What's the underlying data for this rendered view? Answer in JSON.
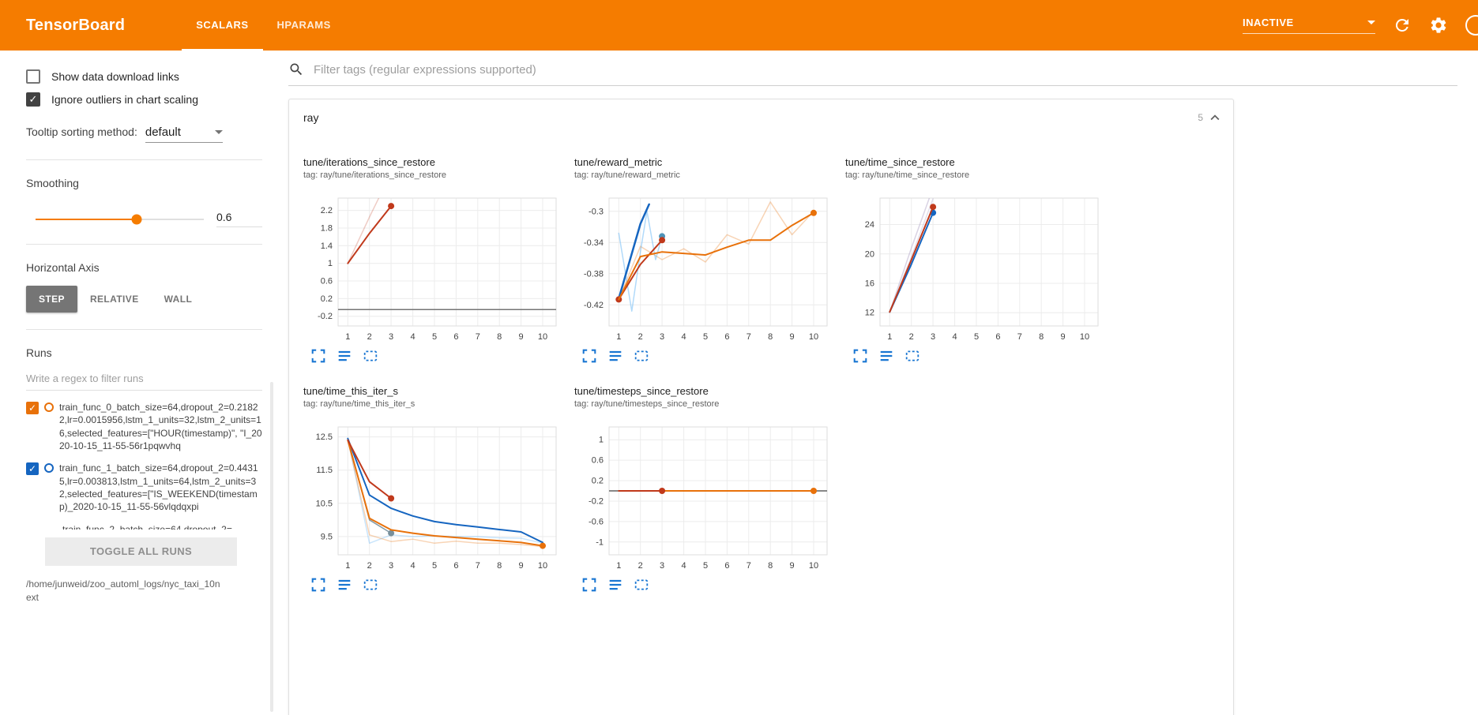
{
  "header": {
    "logo": "TensorBoard",
    "tabs": [
      {
        "label": "SCALARS",
        "active": true
      },
      {
        "label": "HPARAMS",
        "active": false
      }
    ],
    "status": "INACTIVE"
  },
  "sidebar": {
    "show_download": {
      "label": "Show data download links",
      "checked": false
    },
    "ignore_outliers": {
      "label": "Ignore outliers in chart scaling",
      "checked": true
    },
    "tooltip_sorting": {
      "label": "Tooltip sorting method:",
      "value": "default"
    },
    "smoothing": {
      "label": "Smoothing",
      "value": "0.6",
      "percent": 60
    },
    "horizontal_axis": {
      "label": "Horizontal Axis",
      "options": [
        {
          "label": "STEP",
          "selected": true
        },
        {
          "label": "RELATIVE",
          "selected": false
        },
        {
          "label": "WALL",
          "selected": false
        }
      ]
    },
    "runs": {
      "label": "Runs",
      "filter_placeholder": "Write a regex to filter runs",
      "items": [
        {
          "label": "train_func_0_batch_size=64,dropout_2=0.21822,lr=0.0015956,lstm_1_units=32,lstm_2_units=16,selected_features=[\"HOUR(timestamp)\", \"I_2020-10-15_11-55-56r1pqwvhq",
          "checked": true,
          "color": "#e8710a",
          "partial": false
        },
        {
          "label": "train_func_1_batch_size=64,dropout_2=0.44315,lr=0.003813,lstm_1_units=64,lstm_2_units=32,selected_features=[\"IS_WEEKEND(timestamp)_2020-10-15_11-55-56vlqdqxpi",
          "checked": true,
          "color": "#1565c0",
          "partial": false
        },
        {
          "label": "train_func_2_batch_size=64,dropout_2=",
          "checked": true,
          "color": "#9e9e9e",
          "partial": true
        }
      ],
      "toggle_all": "TOGGLE ALL RUNS",
      "log_dir": "/home/junweid/zoo_automl_logs/nyc_taxi_10next"
    }
  },
  "main": {
    "filter_placeholder": "Filter tags (regular expressions supported)",
    "section": {
      "title": "ray",
      "count": "5"
    }
  },
  "chart_data": [
    {
      "type": "line",
      "title": "tune/iterations_since_restore",
      "tag": "tag: ray/tune/iterations_since_restore",
      "x_ticks": [
        1,
        2,
        3,
        4,
        5,
        6,
        7,
        8,
        9,
        10
      ],
      "y_ticks": [
        -0.2,
        0.2,
        0.6,
        1,
        1.4,
        1.8,
        2.2
      ],
      "x_range": [
        0.55,
        10.62
      ],
      "y_range": [
        -0.42,
        2.48
      ],
      "series": [
        {
          "name": "train_func_0 (raw)",
          "color": "#c0391b",
          "opacity": 0.25,
          "width": 1.5,
          "points": [
            [
              1,
              1
            ],
            [
              2,
              2.05
            ],
            [
              3,
              3.05
            ]
          ]
        },
        {
          "name": "train_func_0 (smoothed)",
          "color": "#c0391b",
          "width": 2,
          "endpoint": true,
          "points": [
            [
              1,
              1
            ],
            [
              2,
              1.68
            ],
            [
              3,
              2.3
            ]
          ]
        },
        {
          "name": "baseline",
          "color": "#757575",
          "width": 1.5,
          "points": [
            [
              0.55,
              -0.05
            ],
            [
              10.62,
              -0.05
            ]
          ]
        }
      ]
    },
    {
      "type": "line",
      "title": "tune/reward_metric",
      "tag": "tag: ray/tune/reward_metric",
      "x_ticks": [
        1,
        2,
        3,
        4,
        5,
        6,
        7,
        8,
        9,
        10
      ],
      "y_ticks": [
        -0.42,
        -0.38,
        -0.34,
        -0.3
      ],
      "x_range": [
        0.55,
        10.62
      ],
      "y_range": [
        -0.447,
        -0.283
      ],
      "series": [
        {
          "name": "orange (raw)",
          "color": "#e8710a",
          "opacity": 0.3,
          "width": 1.5,
          "points": [
            [
              1,
              -0.413
            ],
            [
              2,
              -0.345
            ],
            [
              3,
              -0.362
            ],
            [
              4,
              -0.348
            ],
            [
              5,
              -0.365
            ],
            [
              6,
              -0.33
            ],
            [
              7,
              -0.342
            ],
            [
              8,
              -0.288
            ],
            [
              9,
              -0.33
            ],
            [
              10,
              -0.3
            ]
          ]
        },
        {
          "name": "light blue (raw)",
          "color": "#64b5f6",
          "opacity": 0.5,
          "width": 1.5,
          "points": [
            [
              1,
              -0.328
            ],
            [
              1.6,
              -0.428
            ],
            [
              2,
              -0.352
            ],
            [
              2.3,
              -0.3
            ],
            [
              2.7,
              -0.362
            ],
            [
              3,
              -0.332
            ]
          ]
        },
        {
          "name": "blue (smoothed)",
          "color": "#1565c0",
          "width": 2.5,
          "points": [
            [
              1,
              -0.412
            ],
            [
              2,
              -0.316
            ],
            [
              2.4,
              -0.291
            ]
          ]
        },
        {
          "name": "teal endpoint",
          "color": "#4f93b8",
          "endpoint": true,
          "points": [
            [
              3,
              -0.332
            ]
          ]
        },
        {
          "name": "red start point",
          "color": "#c0391b",
          "endpoint": true,
          "points": [
            [
              1,
              -0.413
            ]
          ]
        },
        {
          "name": "red (smoothed)",
          "color": "#c0391b",
          "width": 2,
          "endpoint": true,
          "points": [
            [
              1,
              -0.413
            ],
            [
              2,
              -0.368
            ],
            [
              3,
              -0.337
            ]
          ]
        },
        {
          "name": "orange (smoothed)",
          "color": "#e8710a",
          "width": 2,
          "endpoint": true,
          "points": [
            [
              1,
              -0.413
            ],
            [
              2,
              -0.358
            ],
            [
              3,
              -0.352
            ],
            [
              4,
              -0.354
            ],
            [
              5,
              -0.356
            ],
            [
              6,
              -0.346
            ],
            [
              7,
              -0.337
            ],
            [
              8,
              -0.337
            ],
            [
              9,
              -0.318
            ],
            [
              10,
              -0.302
            ]
          ]
        }
      ]
    },
    {
      "type": "line",
      "title": "tune/time_since_restore",
      "tag": "tag: ray/tune/time_since_restore",
      "x_ticks": [
        1,
        2,
        3,
        4,
        5,
        6,
        7,
        8,
        9,
        10
      ],
      "y_ticks": [
        12,
        16,
        20,
        24
      ],
      "x_range": [
        0.55,
        10.62
      ],
      "y_range": [
        10.2,
        27.6
      ],
      "series": [
        {
          "name": "lavender (raw)",
          "color": "#b3a8c9",
          "opacity": 0.5,
          "width": 1.5,
          "points": [
            [
              1,
              12.1
            ],
            [
              2,
              20.8
            ],
            [
              3,
              29
            ]
          ]
        },
        {
          "name": "gray (raw)",
          "color": "#c5bdd6",
          "opacity": 0.5,
          "width": 1.5,
          "points": [
            [
              1,
              12.1
            ],
            [
              2,
              19.6
            ],
            [
              3,
              27.5
            ]
          ]
        },
        {
          "name": "blue (smoothed)",
          "color": "#1565c0",
          "width": 2,
          "endpoint": true,
          "points": [
            [
              1,
              12.1
            ],
            [
              2,
              18.6
            ],
            [
              3,
              25.6
            ]
          ]
        },
        {
          "name": "red (smoothed)",
          "color": "#c0391b",
          "width": 2,
          "endpoint": true,
          "points": [
            [
              1,
              12.1
            ],
            [
              2,
              19.2
            ],
            [
              3,
              26.4
            ]
          ]
        }
      ]
    },
    {
      "type": "line",
      "title": "tune/time_this_iter_s",
      "tag": "tag: ray/tune/time_this_iter_s",
      "x_ticks": [
        1,
        2,
        3,
        4,
        5,
        6,
        7,
        8,
        9,
        10
      ],
      "y_ticks": [
        9.5,
        10.5,
        11.5,
        12.5
      ],
      "x_range": [
        0.55,
        10.62
      ],
      "y_range": [
        8.95,
        12.8
      ],
      "series": [
        {
          "name": "light blue (raw)",
          "color": "#64b5f6",
          "opacity": 0.35,
          "width": 1.5,
          "points": [
            [
              1,
              12.45
            ],
            [
              2,
              9.3
            ],
            [
              3,
              9.55
            ],
            [
              4,
              9.5
            ],
            [
              5,
              9.52
            ],
            [
              6,
              9.5
            ],
            [
              7,
              9.5
            ],
            [
              8,
              9.46
            ],
            [
              9,
              9.45
            ],
            [
              10,
              9.3
            ]
          ]
        },
        {
          "name": "orange (raw)",
          "color": "#e8710a",
          "opacity": 0.3,
          "width": 1.5,
          "points": [
            [
              1,
              12.4
            ],
            [
              2,
              9.55
            ],
            [
              3,
              9.35
            ],
            [
              4,
              9.42
            ],
            [
              5,
              9.3
            ],
            [
              6,
              9.36
            ],
            [
              7,
              9.3
            ],
            [
              8,
              9.3
            ],
            [
              9,
              9.26
            ],
            [
              10,
              9.2
            ]
          ]
        },
        {
          "name": "gray endpoint",
          "color": "#78909c",
          "opacity": 0.9,
          "width": 1.5,
          "endpoint": true,
          "points": [
            [
              1,
              12.45
            ],
            [
              2,
              10
            ],
            [
              3,
              9.6
            ]
          ]
        },
        {
          "name": "blue (smoothed)",
          "color": "#1565c0",
          "width": 2,
          "points": [
            [
              1,
              12.45
            ],
            [
              2,
              10.75
            ],
            [
              3,
              10.35
            ],
            [
              4,
              10.12
            ],
            [
              5,
              9.95
            ],
            [
              6,
              9.86
            ],
            [
              7,
              9.79
            ],
            [
              8,
              9.71
            ],
            [
              9,
              9.64
            ],
            [
              10,
              9.32
            ]
          ]
        },
        {
          "name": "orange (smoothed)",
          "color": "#e8710a",
          "width": 2,
          "endpoint": true,
          "points": [
            [
              1,
              12.4
            ],
            [
              2,
              10.05
            ],
            [
              3,
              9.7
            ],
            [
              4,
              9.6
            ],
            [
              5,
              9.52
            ],
            [
              6,
              9.47
            ],
            [
              7,
              9.42
            ],
            [
              8,
              9.37
            ],
            [
              9,
              9.32
            ],
            [
              10,
              9.22
            ]
          ]
        },
        {
          "name": "red (smoothed)",
          "color": "#c0391b",
          "width": 2,
          "endpoint": true,
          "points": [
            [
              1,
              12.4
            ],
            [
              2,
              11.15
            ],
            [
              3,
              10.65
            ]
          ]
        }
      ]
    },
    {
      "type": "line",
      "title": "tune/timesteps_since_restore",
      "tag": "tag: ray/tune/timesteps_since_restore",
      "x_ticks": [
        1,
        2,
        3,
        4,
        5,
        6,
        7,
        8,
        9,
        10
      ],
      "y_ticks": [
        -1,
        -0.6,
        -0.2,
        0.2,
        0.6,
        1
      ],
      "x_range": [
        0.55,
        10.62
      ],
      "y_range": [
        -1.25,
        1.25
      ],
      "series": [
        {
          "name": "baseline",
          "color": "#616161",
          "width": 1.5,
          "points": [
            [
              0.55,
              0
            ],
            [
              10.62,
              0
            ]
          ]
        },
        {
          "name": "orange (smoothed)",
          "color": "#e8710a",
          "width": 2,
          "endpoint": true,
          "points": [
            [
              1,
              0
            ],
            [
              10,
              0
            ]
          ]
        },
        {
          "name": "red (smoothed)",
          "color": "#c0391b",
          "width": 2,
          "endpoint": true,
          "points": [
            [
              1,
              0
            ],
            [
              3,
              0
            ]
          ]
        }
      ]
    }
  ]
}
